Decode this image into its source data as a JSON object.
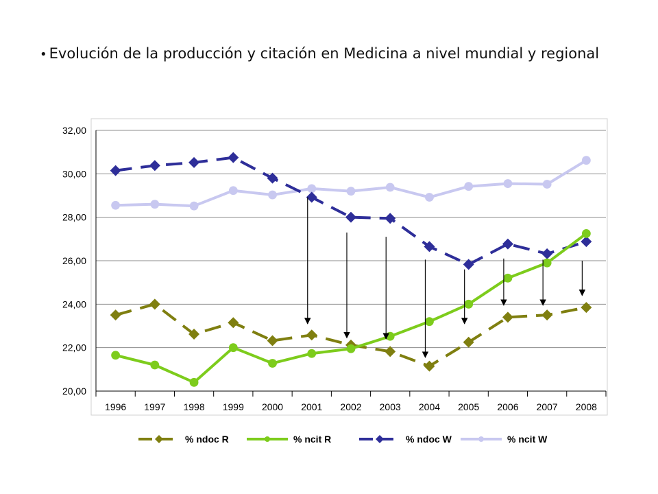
{
  "slide": {
    "bullet": "•",
    "heading": "Evolución de la producción y citación en Medicina a nivel mundial y regional"
  },
  "chart_data": {
    "type": "line",
    "title": "",
    "xlabel": "",
    "ylabel": "",
    "ylim": [
      20,
      32
    ],
    "y_ticks": [
      "20,00",
      "22,00",
      "24,00",
      "26,00",
      "28,00",
      "30,00",
      "32,00"
    ],
    "categories": [
      "1996",
      "1997",
      "1998",
      "1999",
      "2000",
      "2001",
      "2002",
      "2003",
      "2004",
      "2005",
      "2006",
      "2007",
      "2008"
    ],
    "grid": true,
    "legend_position": "bottom",
    "series": [
      {
        "name": "% ndoc R",
        "color": "#7f7f10",
        "style": "dashed",
        "marker": "diamond",
        "values": [
          23.5,
          24.0,
          22.62,
          23.15,
          22.32,
          22.58,
          22.12,
          21.82,
          21.15,
          22.25,
          23.4,
          23.5,
          23.85
        ]
      },
      {
        "name": "% ncit R",
        "color": "#7dcc1c",
        "style": "solid",
        "marker": "circle",
        "values": [
          21.65,
          21.2,
          20.4,
          22.0,
          21.28,
          21.73,
          21.95,
          22.52,
          23.2,
          24.0,
          25.2,
          25.9,
          27.25
        ]
      },
      {
        "name": "% ndoc W",
        "color": "#2e2e99",
        "style": "dashed",
        "marker": "diamond",
        "values": [
          30.15,
          30.38,
          30.52,
          30.75,
          29.8,
          28.92,
          28.0,
          27.95,
          26.65,
          25.83,
          26.77,
          26.32,
          26.88
        ]
      },
      {
        "name": "% ncit W",
        "color": "#c8c8f0",
        "style": "solid",
        "marker": "circle",
        "values": [
          28.55,
          28.6,
          28.52,
          29.23,
          29.03,
          29.32,
          29.2,
          29.38,
          28.92,
          29.42,
          29.55,
          29.52,
          30.62
        ]
      }
    ],
    "annotations": [
      {
        "type": "arrow",
        "category": "2001",
        "from": 28.92,
        "to": 23.1
      },
      {
        "type": "arrow",
        "category": "2002",
        "from": 27.3,
        "to": 22.45
      },
      {
        "type": "arrow",
        "category": "2003",
        "from": 27.1,
        "to": 22.4
      },
      {
        "type": "arrow",
        "category": "2004",
        "from": 26.05,
        "to": 21.55
      },
      {
        "type": "arrow",
        "category": "2005",
        "from": 25.6,
        "to": 23.1
      },
      {
        "type": "arrow",
        "category": "2006",
        "from": 26.1,
        "to": 23.95
      },
      {
        "type": "arrow",
        "category": "2007",
        "from": 26.05,
        "to": 23.95
      },
      {
        "type": "arrow",
        "category": "2008",
        "from": 26.0,
        "to": 24.4
      }
    ]
  }
}
